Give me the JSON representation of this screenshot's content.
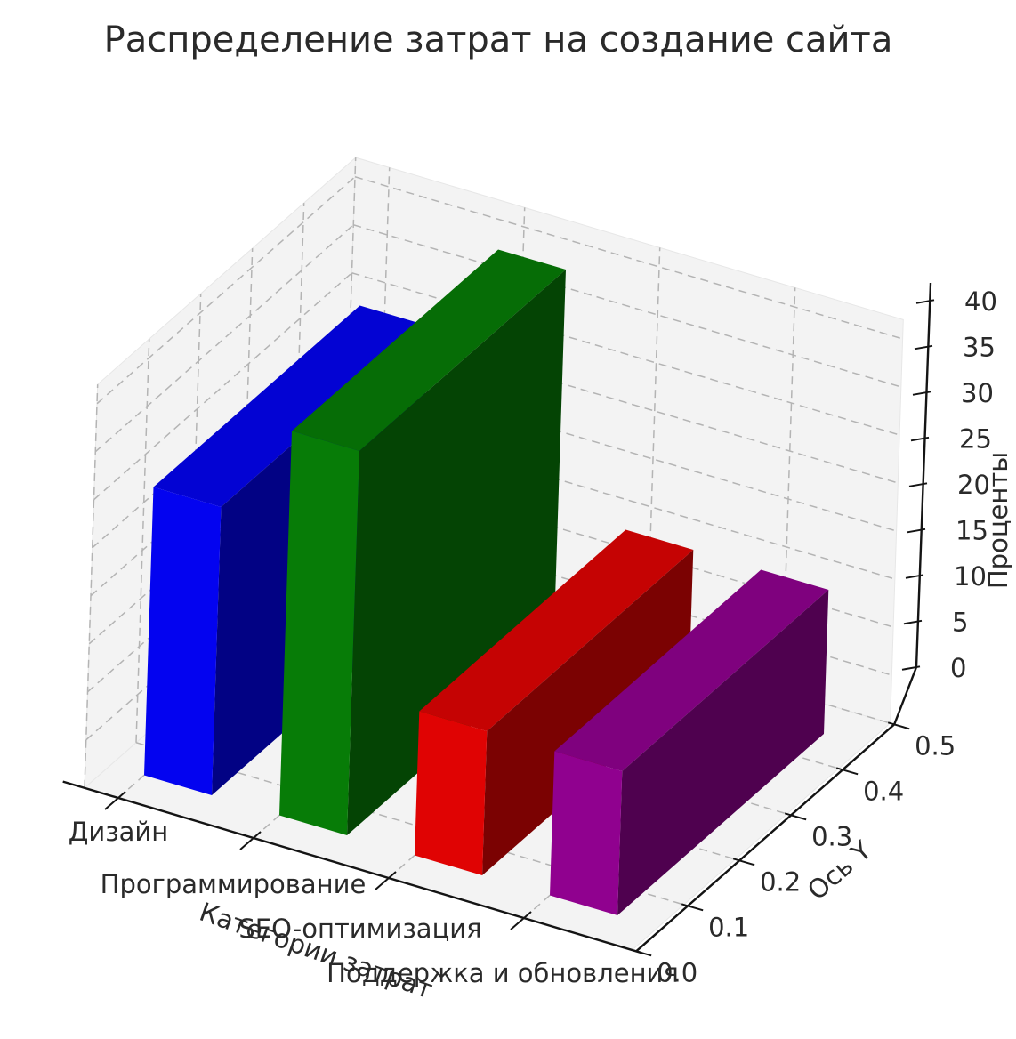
{
  "title": "Распределение затрат на создание сайта",
  "chart_data": {
    "type": "bar",
    "projection": "3d",
    "title": "Распределение затрат на создание сайта",
    "categories": [
      "Дизайн",
      "Программирование",
      "SEO-оптимизация",
      "Поддержка и обновления"
    ],
    "values": [
      30,
      40,
      15,
      15
    ],
    "bar_colors": [
      "#0303f0",
      "#077c07",
      "#e00303",
      "#90018f"
    ],
    "xlabel": "Категории затрат",
    "ylabel": "Ось Y",
    "zlabel": "Проценты",
    "zlim": [
      0,
      42
    ],
    "ylim": [
      0.0,
      0.5
    ],
    "ztick_labels": [
      "0",
      "5",
      "10",
      "15",
      "20",
      "25",
      "30",
      "35",
      "40"
    ],
    "zticks": [
      0,
      5,
      10,
      15,
      20,
      25,
      30,
      35,
      40
    ],
    "ytick_labels": [
      "0.0",
      "0.1",
      "0.2",
      "0.3",
      "0.4",
      "0.5"
    ],
    "yticks": [
      0.0,
      0.1,
      0.2,
      0.3,
      0.4,
      0.5
    ],
    "grid": true,
    "legend": false,
    "style": {
      "background": "#ffffff",
      "pane_color": "#f3f3f3",
      "grid_color": "#b4b4b4",
      "text_color": "#2a2a2a",
      "title_color": "#363636",
      "shade_top": 0.88,
      "shade_side": 0.55
    }
  }
}
